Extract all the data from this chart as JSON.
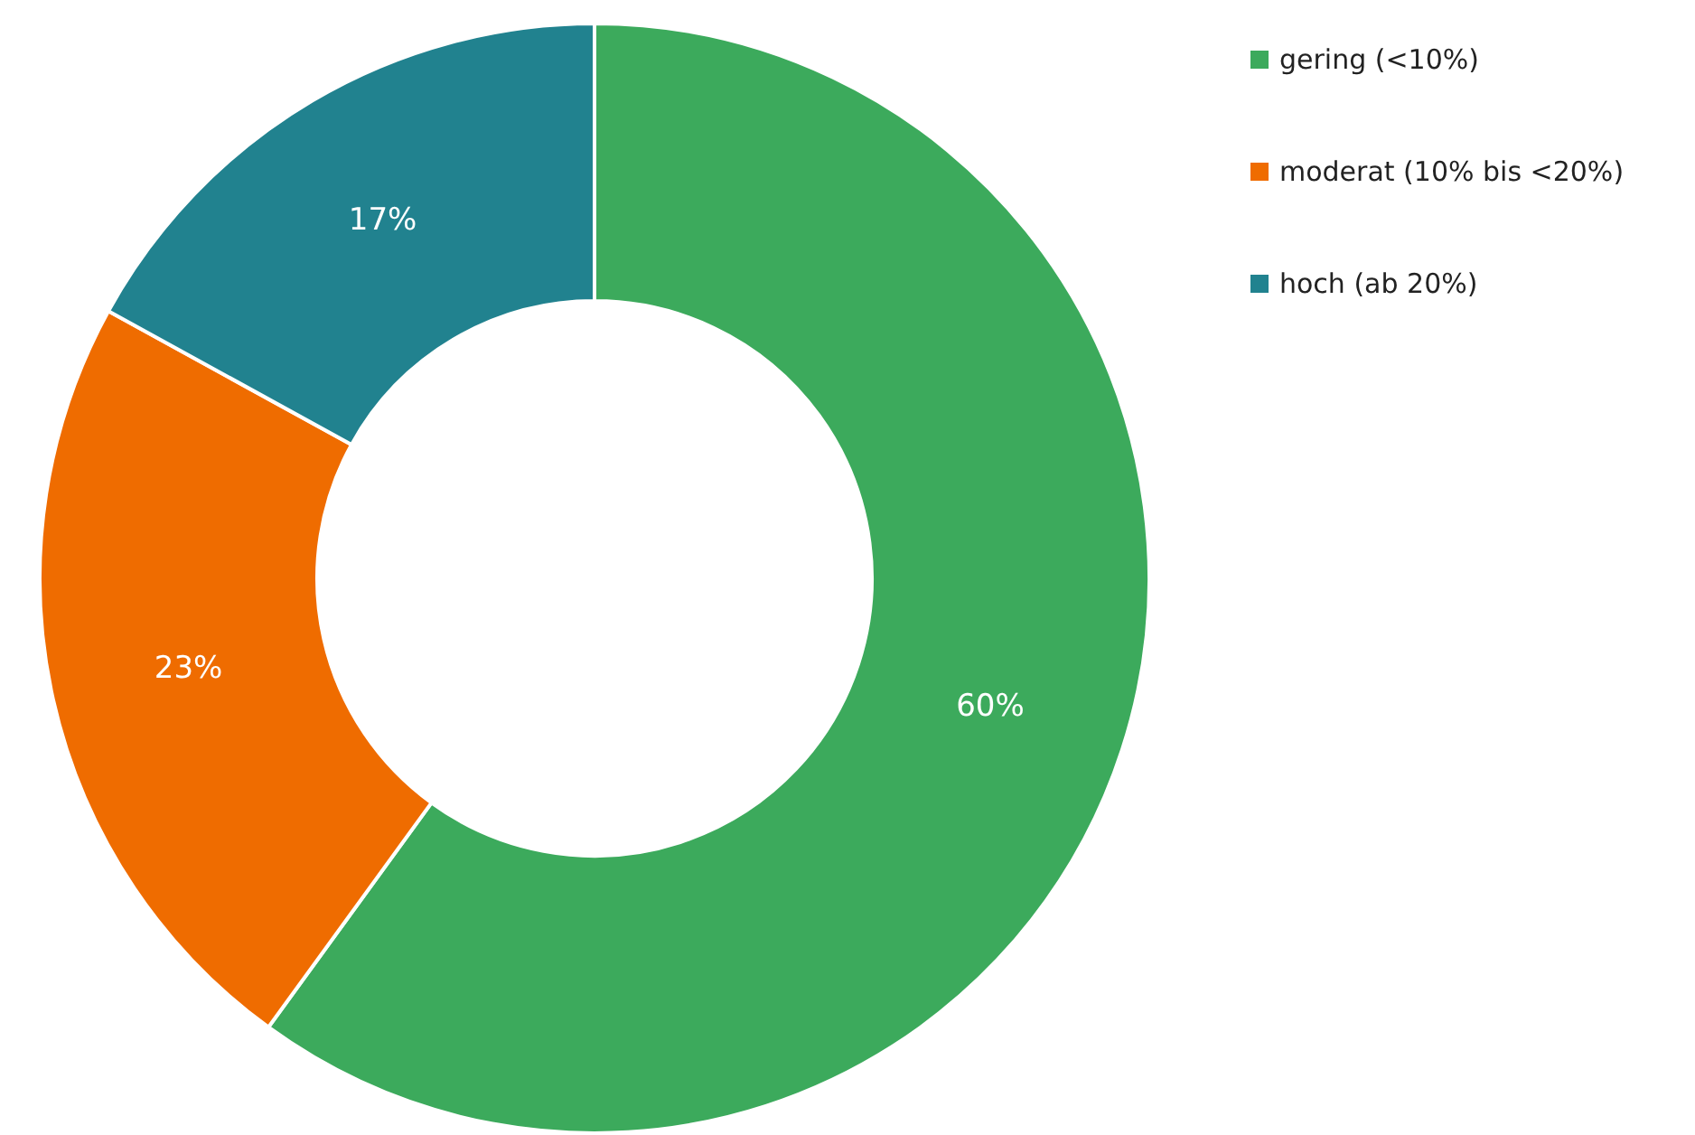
{
  "chart_data": {
    "type": "donut",
    "categories": [
      "gering (<10%)",
      "moderat (10% bis <20%)",
      "hoch (ab 20%)"
    ],
    "values": [
      60,
      23,
      17
    ],
    "colors": [
      "#3caa5c",
      "#ef6c00",
      "#21828f"
    ],
    "value_labels": [
      "60%",
      "23%",
      "17%"
    ],
    "legend": "top right"
  }
}
